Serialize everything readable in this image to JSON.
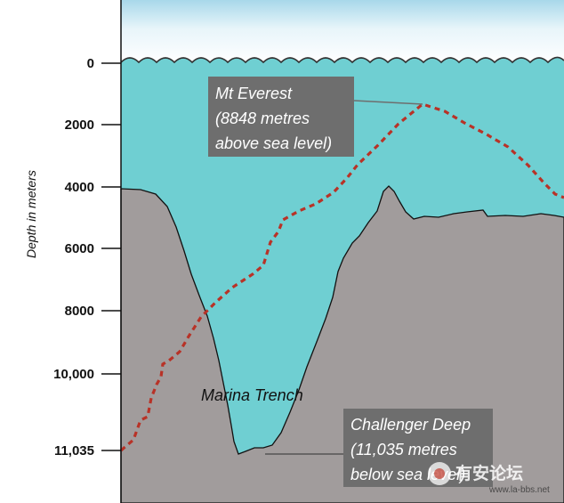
{
  "diagram": {
    "axis_title": "Depth in meters",
    "ticks": [
      {
        "label": "0",
        "value": 0
      },
      {
        "label": "2000",
        "value": 2000
      },
      {
        "label": "4000",
        "value": 4000
      },
      {
        "label": "6000",
        "value": 6000
      },
      {
        "label": "8000",
        "value": 8000
      },
      {
        "label": "10,000",
        "value": 10000
      },
      {
        "label": "11,035",
        "value": 11035
      }
    ],
    "everest_callout": {
      "lines": [
        "Mt Everest",
        "(8848 metres",
        "above sea level)"
      ]
    },
    "trench_label": "Marina Trench",
    "deep_callout": {
      "lines": [
        "Challenger Deep",
        "(11,035  metres",
        "below sea level)"
      ]
    },
    "watermark": {
      "text": "有安论坛",
      "url": "www.la-bbs.net"
    },
    "colors": {
      "water": "#6fcfd2",
      "seafloor": "#a19c9c",
      "callout_box": "#6e6e6e",
      "everest_line": "#c0392b",
      "sky_top": "#bfe3f0"
    }
  }
}
